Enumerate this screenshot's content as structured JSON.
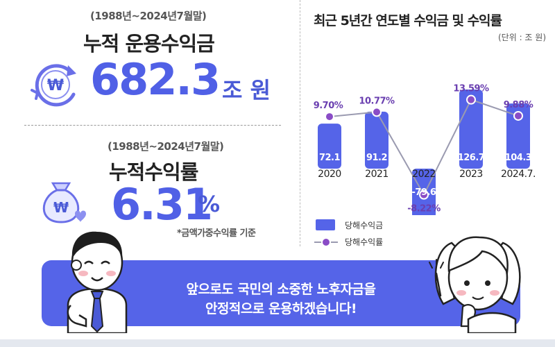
{
  "left": {
    "period1": "(1988년~2024년7월말)",
    "title1": "누적 운용수익금",
    "value1": "682.3",
    "unit1": "조 원",
    "period2": "(1988년~2024년7월말)",
    "title2": "누적수익률",
    "value2": "6.31",
    "unit2": "%",
    "note": "*금액가중수익률 기준",
    "icon1": "won-cycle-icon",
    "icon2": "money-bag-icon"
  },
  "chart_title": "최근 5년간 연도별 수익금 및 수익률",
  "chart_unit": "(단위 : 조 원)",
  "chart_data": {
    "type": "bar",
    "categories": [
      "2020",
      "2021",
      "2022",
      "2023",
      "2024.7."
    ],
    "series": [
      {
        "name": "당해수익금",
        "values": [
          72.1,
          91.2,
          -79.6,
          126.7,
          104.3
        ],
        "labels": [
          "72.1",
          "91.2",
          "-79.6",
          "126.7",
          "104.3"
        ]
      },
      {
        "name": "당해수익률",
        "values": [
          9.7,
          10.77,
          -8.22,
          13.59,
          9.88
        ],
        "labels": [
          "9.70%",
          "10.77%",
          "-8.22%",
          "13.59%",
          "9.88%"
        ]
      }
    ],
    "colors": {
      "bar": "#5564e8",
      "line": "#9a9ab0",
      "dot": "#8a4cc6",
      "dot_edge": "#ffffff"
    },
    "legend_position": "bottom-left"
  },
  "banner": {
    "line1": "앞으로도 국민의 소중한 노후자금을",
    "line2": "안정적으로 운용하겠습니다!",
    "color": "#5564e8"
  }
}
